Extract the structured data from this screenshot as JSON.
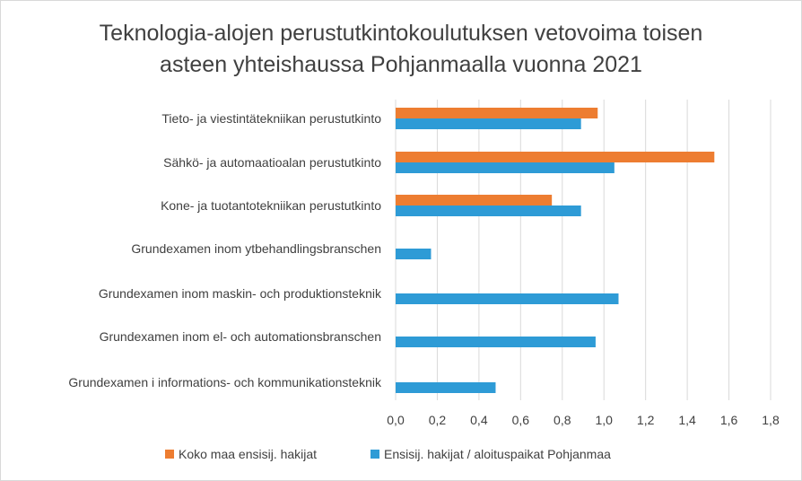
{
  "chart_data": {
    "type": "bar",
    "orientation": "horizontal",
    "title_lines": [
      "Teknologia-alojen perustutkintokoulutuksen vetovoima toisen",
      "asteen yhteishaussa Pohjanmaalla vuonna 2021"
    ],
    "categories": [
      "Tieto- ja viestintätekniikan perustutkinto",
      "Sähkö- ja automaatioalan perustutkinto",
      "Kone- ja tuotantotekniikan perustutkinto",
      "Grundexamen inom ytbehandlingsbranschen",
      "Grundexamen inom maskin- och produktionsteknik",
      "Grundexamen inom el- och automationsbranschen",
      "Grundexamen i informations- och kommunikationsteknik"
    ],
    "series": [
      {
        "name": "Koko maa ensisij. hakijat",
        "color": "#ED7D31",
        "values": [
          0.97,
          1.53,
          0.75,
          null,
          null,
          null,
          null
        ]
      },
      {
        "name": "Ensisij. hakijat / aloituspaikat Pohjanmaa",
        "color": "#2E9BD6",
        "values": [
          0.89,
          1.05,
          0.89,
          0.17,
          1.07,
          0.96,
          0.48
        ]
      }
    ],
    "xlim": [
      0,
      1.8
    ],
    "xticks": [
      "0,0",
      "0,2",
      "0,4",
      "0,6",
      "0,8",
      "1,0",
      "1,2",
      "1,4",
      "1,6",
      "1,8"
    ],
    "grid": true,
    "gridline_color": "#d9d9d9",
    "legend_position": "bottom"
  }
}
